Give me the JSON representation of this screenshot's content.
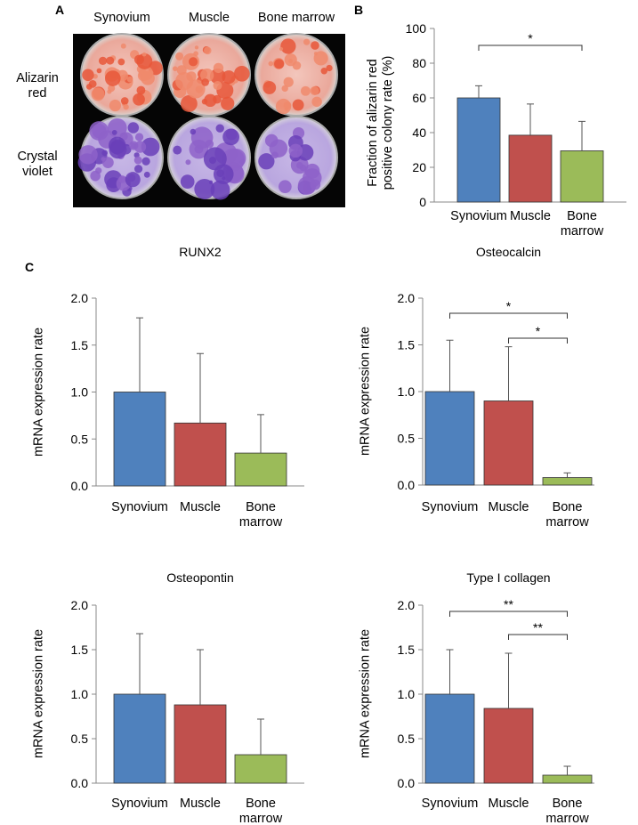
{
  "panels": [
    "A",
    "B",
    "C"
  ],
  "photo": {
    "columns": [
      "Synovium",
      "Muscle",
      "Bone marrow"
    ],
    "rows": [
      "Alizarin red",
      "Crystal violet"
    ]
  },
  "chart_data": [
    {
      "type": "bar",
      "ylabel": "Fraction of alizarin red positive colony rate (%)",
      "categories": [
        "Synovium",
        "Muscle",
        "Bone marrow"
      ],
      "values": [
        60,
        38.5,
        29.5
      ],
      "errors": [
        7,
        18,
        17
      ],
      "colors": [
        "#4f81bd",
        "#c0504d",
        "#9bbb59"
      ],
      "ylim": [
        0,
        100
      ],
      "yticks": [
        0,
        20,
        40,
        60,
        80,
        100
      ],
      "significance": [
        {
          "groups": [
            "Synovium",
            "Bone marrow"
          ],
          "label": "*"
        }
      ]
    },
    {
      "type": "bar",
      "title": "RUNX2",
      "ylabel": "mRNA expression rate",
      "categories": [
        "Synovium",
        "Muscle",
        "Bone marrow"
      ],
      "values": [
        1.0,
        0.67,
        0.35
      ],
      "errors": [
        0.79,
        0.74,
        0.41
      ],
      "colors": [
        "#4f81bd",
        "#c0504d",
        "#9bbb59"
      ],
      "ylim": [
        0,
        2
      ],
      "yticks": [
        {
          "value": 0,
          "label": "0.0"
        },
        {
          "value": 0.5,
          "label": "0.5"
        },
        {
          "value": 1,
          "label": "1.0"
        },
        {
          "value": 1.5,
          "label": "1.5"
        },
        {
          "value": 2,
          "label": "2.0"
        }
      ],
      "significance": []
    },
    {
      "type": "bar",
      "title": "Osteocalcin",
      "ylabel": "mRNA expression rate",
      "categories": [
        "Synovium",
        "Muscle",
        "Bone marrow"
      ],
      "values": [
        1.0,
        0.9,
        0.08
      ],
      "errors": [
        0.55,
        0.58,
        0.05
      ],
      "colors": [
        "#4f81bd",
        "#c0504d",
        "#9bbb59"
      ],
      "ylim": [
        0,
        2
      ],
      "yticks": [
        {
          "value": 0,
          "label": "0.0"
        },
        {
          "value": 0.5,
          "label": "0.5"
        },
        {
          "value": 1,
          "label": "1.0"
        },
        {
          "value": 1.5,
          "label": "1.5"
        },
        {
          "value": 2,
          "label": "2.0"
        }
      ],
      "significance": [
        {
          "groups": [
            "Synovium",
            "Bone marrow"
          ],
          "label": "*"
        },
        {
          "groups": [
            "Muscle",
            "Bone marrow"
          ],
          "label": "*"
        }
      ]
    },
    {
      "type": "bar",
      "title": "Osteopontin",
      "ylabel": "mRNA expression rate",
      "categories": [
        "Synovium",
        "Muscle",
        "Bone marrow"
      ],
      "values": [
        1.0,
        0.88,
        0.32
      ],
      "errors": [
        0.68,
        0.62,
        0.4
      ],
      "colors": [
        "#4f81bd",
        "#c0504d",
        "#9bbb59"
      ],
      "ylim": [
        0,
        2
      ],
      "yticks": [
        {
          "value": 0,
          "label": "0.0"
        },
        {
          "value": 0.5,
          "label": "0.5"
        },
        {
          "value": 1,
          "label": "1.0"
        },
        {
          "value": 1.5,
          "label": "1.5"
        },
        {
          "value": 2,
          "label": "2.0"
        }
      ],
      "significance": []
    },
    {
      "type": "bar",
      "title": "Type I collagen",
      "ylabel": "mRNA expression rate",
      "categories": [
        "Synovium",
        "Muscle",
        "Bone marrow"
      ],
      "values": [
        1.0,
        0.84,
        0.09
      ],
      "errors": [
        0.5,
        0.62,
        0.1
      ],
      "colors": [
        "#4f81bd",
        "#c0504d",
        "#9bbb59"
      ],
      "ylim": [
        0,
        2
      ],
      "yticks": [
        {
          "value": 0,
          "label": "0.0"
        },
        {
          "value": 0.5,
          "label": "0.5"
        },
        {
          "value": 1,
          "label": "1.0"
        },
        {
          "value": 1.5,
          "label": "1.5"
        },
        {
          "value": 2,
          "label": "2.0"
        }
      ],
      "significance": [
        {
          "groups": [
            "Synovium",
            "Bone marrow"
          ],
          "label": "**"
        },
        {
          "groups": [
            "Muscle",
            "Bone marrow"
          ],
          "label": "**"
        }
      ]
    }
  ]
}
